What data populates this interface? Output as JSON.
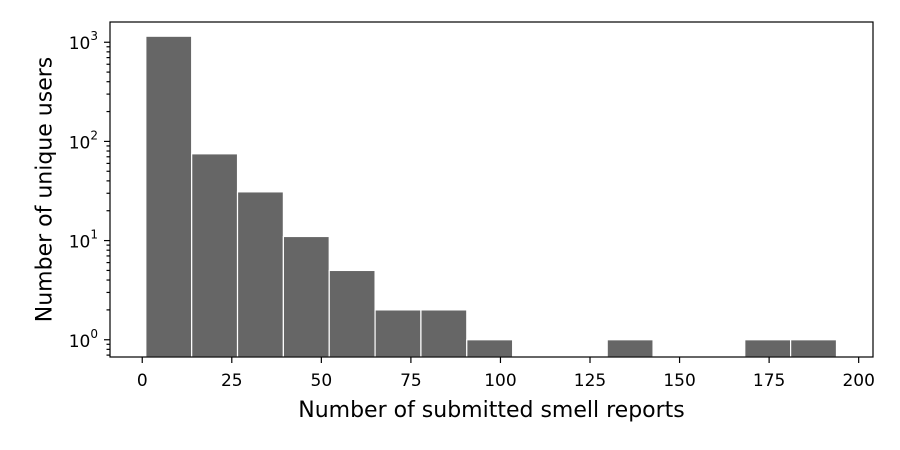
{
  "chart_data": {
    "type": "bar",
    "title": "",
    "xlabel": "Number of submitted smell reports",
    "ylabel": "Number of unique users",
    "yscale": "log",
    "xlim": [
      -9,
      204
    ],
    "ylim": [
      0.67,
      1600
    ],
    "grid": false,
    "x_ticks": [
      0,
      25,
      50,
      75,
      100,
      125,
      150,
      175,
      200
    ],
    "y_ticks": [
      {
        "value": 1,
        "base": "10",
        "exp": "0"
      },
      {
        "value": 10,
        "base": "10",
        "exp": "1"
      },
      {
        "value": 100,
        "base": "10",
        "exp": "2"
      },
      {
        "value": 1000,
        "base": "10",
        "exp": "3"
      }
    ],
    "bar_color": "#666666",
    "bins": [
      {
        "x0": 1,
        "x1": 13.8,
        "count": 1150
      },
      {
        "x0": 13.8,
        "x1": 26.6,
        "count": 75
      },
      {
        "x0": 26.6,
        "x1": 39.4,
        "count": 31
      },
      {
        "x0": 39.4,
        "x1": 52.2,
        "count": 11
      },
      {
        "x0": 52.2,
        "x1": 65,
        "count": 5
      },
      {
        "x0": 65,
        "x1": 77.8,
        "count": 2
      },
      {
        "x0": 77.8,
        "x1": 90.6,
        "count": 2
      },
      {
        "x0": 90.6,
        "x1": 103.4,
        "count": 1
      },
      {
        "x0": 129.8,
        "x1": 142.6,
        "count": 1
      },
      {
        "x0": 168.2,
        "x1": 181,
        "count": 1
      },
      {
        "x0": 181,
        "x1": 193.8,
        "count": 1
      }
    ]
  }
}
